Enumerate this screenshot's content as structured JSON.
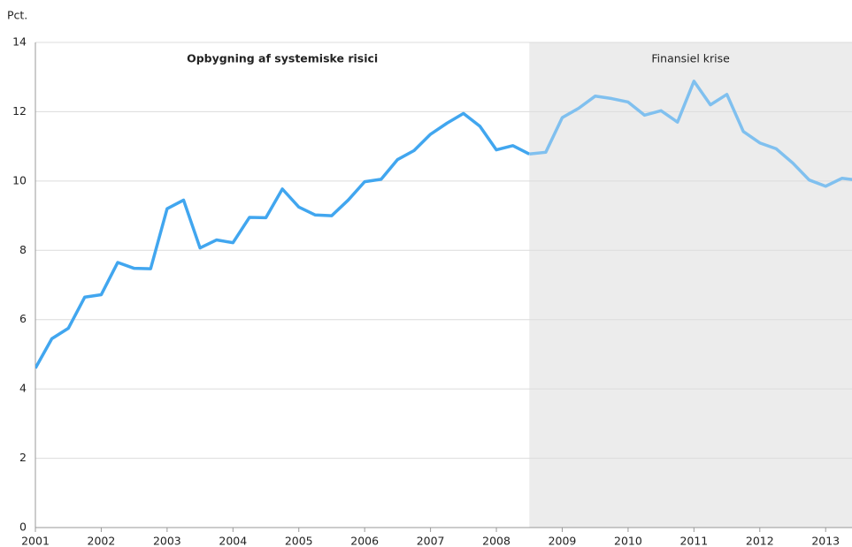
{
  "chart_data": {
    "type": "line",
    "y_label": "Pct.",
    "x": [
      2001,
      2001.25,
      2001.5,
      2001.75,
      2002,
      2002.25,
      2002.5,
      2002.75,
      2003,
      2003.25,
      2003.5,
      2003.75,
      2004,
      2004.25,
      2004.5,
      2004.75,
      2005,
      2005.25,
      2005.5,
      2005.75,
      2006,
      2006.25,
      2006.5,
      2006.75,
      2007,
      2007.25,
      2007.5,
      2007.75,
      2008,
      2008.25,
      2008.5,
      2008.75,
      2009,
      2009.25,
      2009.5,
      2009.75,
      2010,
      2010.25,
      2010.5,
      2010.75,
      2011,
      2011.25,
      2011.5,
      2011.75,
      2012,
      2012.25,
      2012.5,
      2012.75,
      2013,
      2013.25,
      2013.5
    ],
    "series": [
      {
        "color": "#41a6ef",
        "values": [
          4.6,
          5.45,
          5.75,
          6.65,
          6.72,
          7.65,
          7.48,
          7.47,
          9.2,
          9.45,
          8.07,
          8.3,
          8.22,
          8.95,
          8.94,
          9.77,
          9.25,
          9.02,
          9.0,
          9.45,
          9.98,
          10.05,
          10.62,
          10.88,
          11.35,
          11.67,
          11.95,
          11.58,
          10.9,
          11.02,
          10.78,
          null,
          null,
          null,
          null,
          null,
          null,
          null,
          null,
          null,
          null,
          null,
          null,
          null,
          null,
          null,
          null,
          null,
          null,
          null,
          null
        ]
      },
      {
        "color": "#80c0ef",
        "values": [
          null,
          null,
          null,
          null,
          null,
          null,
          null,
          null,
          null,
          null,
          null,
          null,
          null,
          null,
          null,
          null,
          null,
          null,
          null,
          null,
          null,
          null,
          null,
          null,
          null,
          null,
          null,
          null,
          null,
          null,
          10.78,
          10.83,
          11.83,
          12.1,
          12.45,
          12.38,
          12.28,
          11.9,
          12.03,
          11.7,
          12.88,
          12.2,
          12.5,
          11.43,
          11.1,
          10.93,
          10.52,
          10.03,
          9.85,
          10.08,
          10.02
        ]
      }
    ],
    "regions": [
      {
        "label": "Opbygning af systemiske risici",
        "from": 2001,
        "to": 2008.5,
        "shaded": false,
        "bold": true
      },
      {
        "label": "Finansiel krise",
        "from": 2008.5,
        "to": 2013.4,
        "shaded": true,
        "bold": false
      }
    ],
    "xlim": [
      2001,
      2013.4
    ],
    "xticks": [
      2001,
      2002,
      2003,
      2004,
      2005,
      2006,
      2007,
      2008,
      2009,
      2010,
      2011,
      2012,
      2013
    ],
    "ylim": [
      0,
      14
    ],
    "yticks": [
      0,
      2,
      4,
      6,
      8,
      10,
      12,
      14
    ],
    "grid": true
  }
}
